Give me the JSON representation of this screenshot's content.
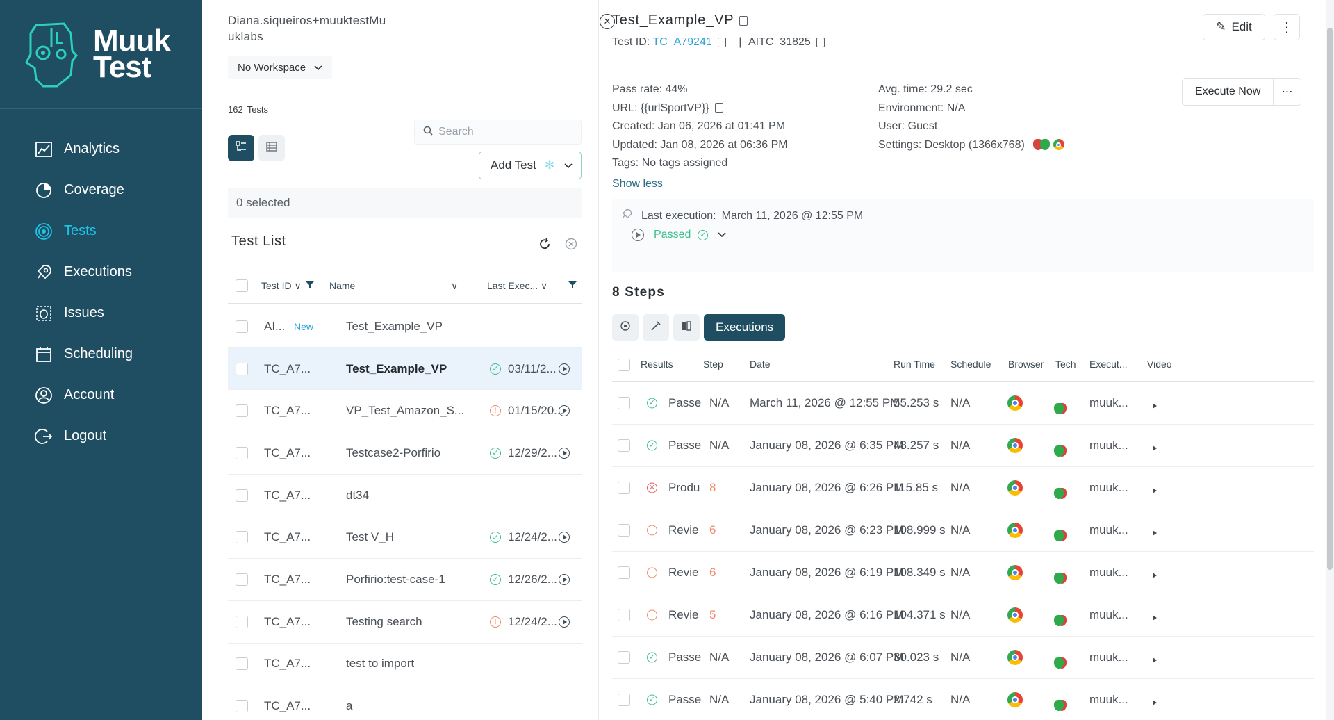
{
  "brand": {
    "line1": "Muuk",
    "line2": "Test"
  },
  "sidebar": {
    "items": [
      {
        "label": "Analytics",
        "icon": "analytics-icon"
      },
      {
        "label": "Coverage",
        "icon": "coverage-icon"
      },
      {
        "label": "Tests",
        "icon": "tests-icon",
        "active": true
      },
      {
        "label": "Executions",
        "icon": "rocket-icon"
      },
      {
        "label": "Issues",
        "icon": "bug-icon"
      },
      {
        "label": "Scheduling",
        "icon": "calendar-icon"
      },
      {
        "label": "Account",
        "icon": "user-icon"
      },
      {
        "label": "Logout",
        "icon": "logout-icon"
      }
    ]
  },
  "middle": {
    "user": "Diana.siqueiros+muuktestMu uklabs",
    "workspace": "No Workspace",
    "test_count": "162",
    "test_count_label": "Tests",
    "search_placeholder": "Search",
    "add_test": "Add Test",
    "selected": "0 selected",
    "list_title": "Test List",
    "columns": {
      "test_id": "Test ID",
      "name": "Name",
      "last_exec": "Last Exec..."
    },
    "rows": [
      {
        "id": "AI...",
        "badge": "New",
        "name": "Test_Example_VP",
        "status": "",
        "date": "",
        "play": false
      },
      {
        "id": "TC_A7...",
        "badge": "",
        "name": "Test_Example_VP",
        "status": "ok",
        "date": "03/11/2...",
        "play": true,
        "selected": true
      },
      {
        "id": "TC_A7...",
        "badge": "",
        "name": "VP_Test_Amazon_S...",
        "status": "warn",
        "date": "01/15/20...",
        "play": true
      },
      {
        "id": "TC_A7...",
        "badge": "",
        "name": "Testcase2-Porfirio",
        "status": "ok",
        "date": "12/29/2...",
        "play": true
      },
      {
        "id": "TC_A7...",
        "badge": "",
        "name": "dt34",
        "status": "",
        "date": "",
        "play": false
      },
      {
        "id": "TC_A7...",
        "badge": "",
        "name": "Test V_H",
        "status": "ok",
        "date": "12/24/2...",
        "play": true
      },
      {
        "id": "TC_A7...",
        "badge": "",
        "name": "Porfirio:test-case-1",
        "status": "ok",
        "date": "12/26/2...",
        "play": true
      },
      {
        "id": "TC_A7...",
        "badge": "",
        "name": "Testing search",
        "status": "warn",
        "date": "12/24/2...",
        "play": true
      },
      {
        "id": "TC_A7...",
        "badge": "",
        "name": "test to import",
        "status": "",
        "date": "",
        "play": false
      },
      {
        "id": "TC_A7...",
        "badge": "",
        "name": "a",
        "status": "",
        "date": "",
        "play": false
      }
    ]
  },
  "detail": {
    "title": "Test_Example_VP",
    "test_id_label": "Test ID:",
    "test_id": "TC_A79241",
    "aitc": "AITC_31825",
    "edit": "Edit",
    "execute_now": "Execute Now",
    "meta_left": [
      "Pass rate: 44%",
      "URL: {{urlSportVP}}",
      "Created: Jan 06, 2026 at 01:41 PM",
      "Updated: Jan 08, 2026 at 06:36 PM",
      "Tags: No tags assigned"
    ],
    "meta_right": [
      "Avg. time: 29.2 sec",
      "Environment: N/A",
      "User: Guest",
      "Settings: Desktop (1366x768)"
    ],
    "show_less": "Show less",
    "last_execution_label": "Last execution:",
    "last_execution_date": "March 11, 2026 @ 12:55 PM",
    "last_execution_status": "Passed",
    "steps_title": "8 Steps",
    "executions_tab": "Executions",
    "exec_columns": {
      "results": "Results",
      "step": "Step",
      "date": "Date",
      "run_time": "Run Time",
      "schedule": "Schedule",
      "browser": "Browser",
      "tech": "Tech",
      "executor": "Execut...",
      "video": "Video"
    },
    "executions": [
      {
        "result": "Passe",
        "kind": "ok",
        "step": "N/A",
        "date": "March 11, 2026 @ 12:55 PM",
        "run_time": "55.253 s",
        "schedule": "N/A",
        "executor": "muuk..."
      },
      {
        "result": "Passe",
        "kind": "ok",
        "step": "N/A",
        "date": "January 08, 2026 @ 6:35 PM",
        "run_time": "48.257 s",
        "schedule": "N/A",
        "executor": "muuk..."
      },
      {
        "result": "Produ",
        "kind": "err",
        "step": "8",
        "date": "January 08, 2026 @ 6:26 PM",
        "run_time": "115.85 s",
        "schedule": "N/A",
        "executor": "muuk..."
      },
      {
        "result": "Revie",
        "kind": "warn",
        "step": "6",
        "date": "January 08, 2026 @ 6:23 PM",
        "run_time": "108.999 s",
        "schedule": "N/A",
        "executor": "muuk..."
      },
      {
        "result": "Revie",
        "kind": "warn",
        "step": "6",
        "date": "January 08, 2026 @ 6:19 PM",
        "run_time": "108.349 s",
        "schedule": "N/A",
        "executor": "muuk..."
      },
      {
        "result": "Revie",
        "kind": "warn",
        "step": "5",
        "date": "January 08, 2026 @ 6:16 PM",
        "run_time": "104.371 s",
        "schedule": "N/A",
        "executor": "muuk..."
      },
      {
        "result": "Passe",
        "kind": "ok",
        "step": "N/A",
        "date": "January 08, 2026 @ 6:07 PM",
        "run_time": "30.023 s",
        "schedule": "N/A",
        "executor": "muuk..."
      },
      {
        "result": "Passe",
        "kind": "ok",
        "step": "N/A",
        "date": "January 08, 2026 @ 5:40 PM",
        "run_time": "2.742 s",
        "schedule": "N/A",
        "executor": "muuk..."
      }
    ]
  },
  "colors": {
    "sidebar": "#1f4e63",
    "accent": "#1fc4ea",
    "success": "#3cc08a",
    "warning": "#f08a6c",
    "error": "#e8545a",
    "link": "#2ba3d6"
  }
}
